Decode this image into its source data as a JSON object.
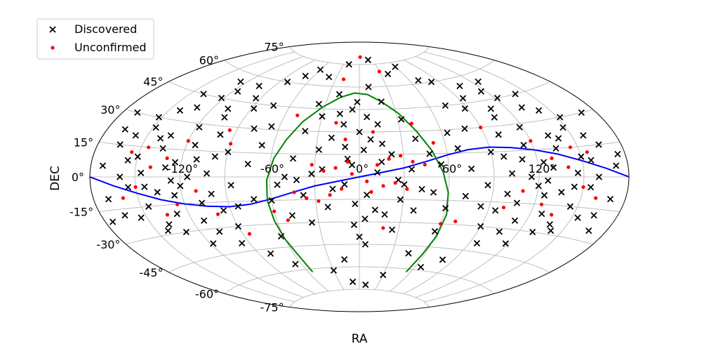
{
  "chart_data": {
    "type": "scatter",
    "projection": "aitoff",
    "xlabel": "RA",
    "ylabel": "DEC",
    "grid": true,
    "legend_position": "top-left",
    "dec_tick_labels": [
      "75°",
      "60°",
      "45°",
      "30°",
      "15°",
      "0°",
      "-15°",
      "-30°",
      "-45°",
      "-60°",
      "-75°"
    ],
    "dec_tick_values": [
      75,
      60,
      45,
      30,
      15,
      0,
      -15,
      -30,
      -45,
      -60,
      -75
    ],
    "ra_tick_labels": [
      "-120°",
      "-60°",
      "0°",
      "60°",
      "120°"
    ],
    "ra_tick_values": [
      -120,
      -60,
      0,
      60,
      120
    ],
    "series": [
      {
        "name": "Discovered",
        "marker": "x",
        "color": "#000000",
        "points": [
          [
            -30,
            40
          ],
          [
            -20,
            55
          ],
          [
            10,
            60
          ],
          [
            20,
            50
          ],
          [
            -40,
            30
          ],
          [
            40,
            25
          ],
          [
            0,
            30
          ],
          [
            -10,
            20
          ],
          [
            15,
            10
          ],
          [
            -25,
            5
          ],
          [
            30,
            -5
          ],
          [
            -50,
            0
          ],
          [
            50,
            -10
          ],
          [
            -60,
            -15
          ],
          [
            60,
            -20
          ],
          [
            -35,
            -30
          ],
          [
            25,
            -35
          ],
          [
            5,
            -45
          ],
          [
            -15,
            -55
          ],
          [
            45,
            -50
          ],
          [
            -10,
            -5
          ],
          [
            -5,
            8
          ],
          [
            5,
            -12
          ],
          [
            12,
            3
          ],
          [
            -18,
            -8
          ],
          [
            22,
            15
          ],
          [
            -28,
            18
          ],
          [
            35,
            5
          ],
          [
            -45,
            12
          ],
          [
            55,
            8
          ],
          [
            -55,
            -5
          ],
          [
            8,
            25
          ],
          [
            -12,
            35
          ],
          [
            18,
            -25
          ],
          [
            -22,
            -20
          ],
          [
            28,
            -15
          ],
          [
            -38,
            -12
          ],
          [
            42,
            -8
          ],
          [
            -48,
            -25
          ],
          [
            48,
            15
          ],
          [
            -8,
            12
          ],
          [
            3,
            18
          ],
          [
            16,
            22
          ],
          [
            -3,
            -18
          ],
          [
            11,
            -22
          ],
          [
            -20,
            26
          ],
          [
            26,
            -2
          ],
          [
            -32,
            2
          ],
          [
            38,
            -22
          ],
          [
            -42,
            -2
          ],
          [
            6,
            40
          ],
          [
            -6,
            45
          ],
          [
            14,
            35
          ],
          [
            -16,
            42
          ],
          [
            33,
            38
          ],
          [
            -36,
            48
          ],
          [
            64,
            28
          ],
          [
            -66,
            32
          ],
          [
            58,
            -35
          ],
          [
            -62,
            -38
          ],
          [
            -110,
            10
          ],
          [
            -115,
            0
          ],
          [
            -120,
            -5
          ],
          [
            -125,
            -10
          ],
          [
            -130,
            5
          ],
          [
            -135,
            15
          ],
          [
            -140,
            20
          ],
          [
            -145,
            -15
          ],
          [
            -150,
            10
          ],
          [
            -155,
            -5
          ],
          [
            -160,
            0
          ],
          [
            -165,
            15
          ],
          [
            -170,
            -10
          ],
          [
            -100,
            25
          ],
          [
            -105,
            35
          ],
          [
            -95,
            -20
          ],
          [
            -90,
            -30
          ],
          [
            -100,
            -10
          ],
          [
            -112,
            -25
          ],
          [
            -118,
            28
          ],
          [
            -128,
            -20
          ],
          [
            -138,
            -25
          ],
          [
            -148,
            25
          ],
          [
            -158,
            20
          ],
          [
            -108,
            40
          ],
          [
            -122,
            45
          ],
          [
            -132,
            38
          ],
          [
            -142,
            35
          ],
          [
            -152,
            30
          ],
          [
            -98,
            12
          ],
          [
            -102,
            2
          ],
          [
            -126,
            -2
          ],
          [
            -136,
            -8
          ],
          [
            -146,
            2
          ],
          [
            -156,
            8
          ],
          [
            -164,
            -18
          ],
          [
            -172,
            5
          ],
          [
            -94,
            48
          ],
          [
            -104,
            55
          ],
          [
            -116,
            50
          ],
          [
            -126,
            55
          ],
          [
            -140,
            45
          ],
          [
            -88,
            42
          ],
          [
            -82,
            60
          ],
          [
            -96,
            -40
          ],
          [
            -106,
            -32
          ],
          [
            -118,
            -38
          ],
          [
            -130,
            -30
          ],
          [
            -142,
            -28
          ],
          [
            -154,
            -20
          ],
          [
            -86,
            -5
          ],
          [
            -90,
            15
          ],
          [
            -78,
            30
          ],
          [
            -74,
            45
          ],
          [
            -84,
            -18
          ],
          [
            -114,
            18
          ],
          [
            -134,
            22
          ],
          [
            -144,
            -5
          ],
          [
            -124,
            8
          ],
          [
            -108,
            -15
          ],
          [
            110,
            10
          ],
          [
            115,
            0
          ],
          [
            120,
            -5
          ],
          [
            125,
            -10
          ],
          [
            130,
            5
          ],
          [
            135,
            15
          ],
          [
            140,
            20
          ],
          [
            145,
            -15
          ],
          [
            150,
            10
          ],
          [
            155,
            -5
          ],
          [
            160,
            0
          ],
          [
            165,
            15
          ],
          [
            170,
            -10
          ],
          [
            100,
            25
          ],
          [
            105,
            35
          ],
          [
            95,
            -20
          ],
          [
            90,
            -30
          ],
          [
            100,
            -10
          ],
          [
            112,
            -25
          ],
          [
            118,
            28
          ],
          [
            128,
            -20
          ],
          [
            138,
            -25
          ],
          [
            148,
            25
          ],
          [
            158,
            20
          ],
          [
            108,
            40
          ],
          [
            122,
            45
          ],
          [
            132,
            38
          ],
          [
            142,
            35
          ],
          [
            152,
            30
          ],
          [
            98,
            12
          ],
          [
            102,
            2
          ],
          [
            126,
            -2
          ],
          [
            136,
            -8
          ],
          [
            146,
            2
          ],
          [
            156,
            8
          ],
          [
            164,
            -18
          ],
          [
            172,
            5
          ],
          [
            94,
            48
          ],
          [
            104,
            55
          ],
          [
            116,
            50
          ],
          [
            126,
            55
          ],
          [
            140,
            45
          ],
          [
            88,
            42
          ],
          [
            82,
            60
          ],
          [
            96,
            -40
          ],
          [
            106,
            -32
          ],
          [
            118,
            -38
          ],
          [
            130,
            -30
          ],
          [
            142,
            -28
          ],
          [
            154,
            -20
          ],
          [
            86,
            -5
          ],
          [
            90,
            15
          ],
          [
            78,
            30
          ],
          [
            74,
            45
          ],
          [
            84,
            -18
          ],
          [
            114,
            18
          ],
          [
            134,
            22
          ],
          [
            144,
            -5
          ],
          [
            124,
            8
          ],
          [
            108,
            -15
          ],
          [
            -70,
            65
          ],
          [
            -60,
            70
          ],
          [
            70,
            62
          ],
          [
            60,
            72
          ],
          [
            -20,
            75
          ],
          [
            20,
            78
          ],
          [
            40,
            68
          ],
          [
            -40,
            66
          ],
          [
            -80,
            -48
          ],
          [
            80,
            -52
          ],
          [
            -30,
            -62
          ],
          [
            30,
            -65
          ],
          [
            -10,
            -70
          ],
          [
            10,
            -72
          ],
          [
            66,
            -58
          ],
          [
            -66,
            -56
          ],
          [
            0,
            -40
          ],
          [
            -4,
            -32
          ],
          [
            4,
            -28
          ],
          [
            -2,
            50
          ],
          [
            75,
            5
          ],
          [
            -75,
            8
          ],
          [
            72,
            -12
          ],
          [
            -72,
            -14
          ],
          [
            68,
            18
          ],
          [
            -68,
            20
          ],
          [
            170,
            30
          ],
          [
            -170,
            30
          ],
          [
            175,
            10
          ],
          [
            -175,
            -20
          ],
          [
            168,
            -25
          ],
          [
            -168,
            22
          ]
        ]
      },
      {
        "name": "Unconfirmed",
        "marker": "o",
        "color": "#ff0000",
        "points": [
          [
            -5,
            2
          ],
          [
            5,
            -3
          ],
          [
            12,
            8
          ],
          [
            -12,
            -8
          ],
          [
            20,
            12
          ],
          [
            -20,
            -12
          ],
          [
            28,
            14
          ],
          [
            -28,
            -16
          ],
          [
            36,
            10
          ],
          [
            -36,
            -14
          ],
          [
            44,
            8
          ],
          [
            -44,
            -10
          ],
          [
            8,
            -10
          ],
          [
            -8,
            10
          ],
          [
            16,
            -6
          ],
          [
            -16,
            6
          ],
          [
            24,
            -4
          ],
          [
            -24,
            4
          ],
          [
            32,
            -8
          ],
          [
            -32,
            8
          ],
          [
            -140,
            5
          ],
          [
            -150,
            -5
          ],
          [
            -130,
            10
          ],
          [
            -145,
            15
          ],
          [
            -125,
            -15
          ],
          [
            -135,
            -20
          ],
          [
            -120,
            20
          ],
          [
            -110,
            -8
          ],
          [
            -155,
            12
          ],
          [
            -160,
            -10
          ],
          [
            140,
            5
          ],
          [
            150,
            -5
          ],
          [
            130,
            10
          ],
          [
            145,
            15
          ],
          [
            125,
            -15
          ],
          [
            135,
            -20
          ],
          [
            120,
            20
          ],
          [
            110,
            -8
          ],
          [
            155,
            12
          ],
          [
            160,
            -10
          ],
          [
            10,
            30
          ],
          [
            -10,
            25
          ],
          [
            40,
            35
          ],
          [
            -50,
            40
          ],
          [
            -20,
            65
          ],
          [
            30,
            70
          ],
          [
            2,
            80
          ],
          [
            -90,
            20
          ],
          [
            -85,
            -35
          ],
          [
            60,
            -30
          ],
          [
            70,
            -28
          ],
          [
            -60,
            -22
          ],
          [
            52,
            22
          ],
          [
            -52,
            -28
          ],
          [
            18,
            -34
          ],
          [
            -18,
            36
          ],
          [
            90,
            30
          ],
          [
            -95,
            28
          ],
          [
            100,
            -18
          ],
          [
            -100,
            -22
          ]
        ]
      }
    ],
    "curves": [
      {
        "color": "#0000ff",
        "description_free": true,
        "points": [
          [
            -180,
            0
          ],
          [
            -165,
            -4
          ],
          [
            -150,
            -8
          ],
          [
            -135,
            -12
          ],
          [
            -120,
            -15
          ],
          [
            -105,
            -17
          ],
          [
            -90,
            -18
          ],
          [
            -75,
            -17
          ],
          [
            -60,
            -14
          ],
          [
            -45,
            -10
          ],
          [
            -30,
            -6
          ],
          [
            -15,
            -3
          ],
          [
            0,
            0
          ],
          [
            15,
            3
          ],
          [
            30,
            6
          ],
          [
            45,
            10
          ],
          [
            60,
            14
          ],
          [
            75,
            17
          ],
          [
            90,
            18
          ],
          [
            105,
            17
          ],
          [
            120,
            15
          ],
          [
            135,
            12
          ],
          [
            150,
            8
          ],
          [
            165,
            4
          ],
          [
            180,
            0
          ]
        ]
      },
      {
        "color": "#008000",
        "description_free": true,
        "points": [
          [
            -55,
            -62
          ],
          [
            -57,
            -50
          ],
          [
            -60,
            -40
          ],
          [
            -62,
            -28
          ],
          [
            -63,
            -15
          ],
          [
            -62,
            -2
          ],
          [
            -58,
            12
          ],
          [
            -52,
            24
          ],
          [
            -44,
            36
          ],
          [
            -32,
            46
          ],
          [
            -18,
            53
          ],
          [
            -5,
            56
          ],
          [
            8,
            55
          ],
          [
            20,
            50
          ],
          [
            32,
            42
          ],
          [
            42,
            30
          ],
          [
            50,
            17
          ],
          [
            56,
            3
          ],
          [
            60,
            -10
          ],
          [
            62,
            -24
          ],
          [
            61,
            -38
          ],
          [
            58,
            -50
          ],
          [
            55,
            -62
          ]
        ]
      }
    ],
    "legend": {
      "entries": [
        {
          "label": "Discovered",
          "marker": "x",
          "color": "#000000"
        },
        {
          "label": "Unconfirmed",
          "marker": "o",
          "color": "#ff0000"
        }
      ]
    }
  }
}
